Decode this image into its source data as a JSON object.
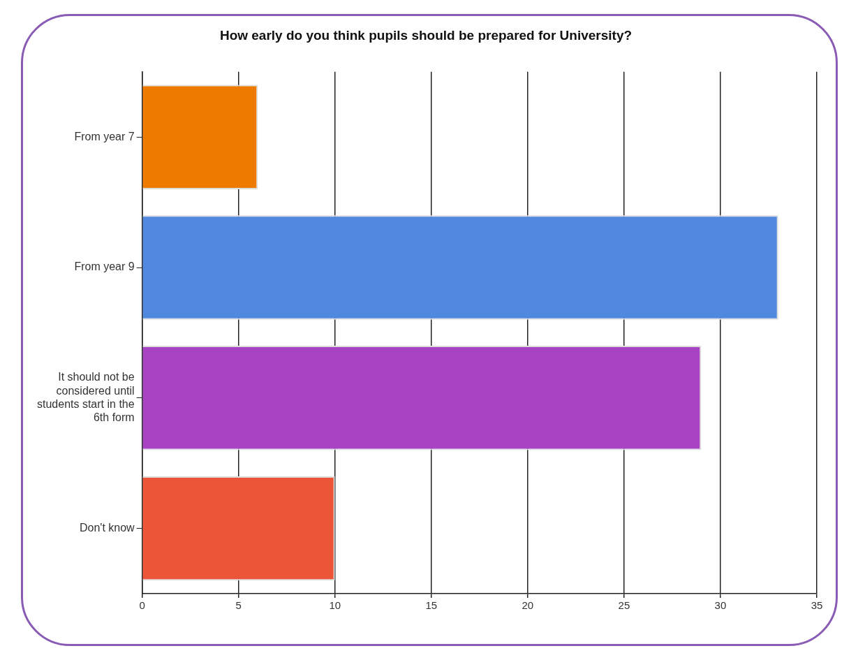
{
  "chart_data": {
    "type": "bar",
    "orientation": "horizontal",
    "title": "How early do you think pupils should be prepared for University?",
    "categories": [
      "From year 7",
      "From year 9",
      "It should not be considered until students start in the 6th form",
      "Don't know"
    ],
    "values": [
      6,
      33,
      29,
      10
    ],
    "colors": [
      "#ee7a00",
      "#5088dd",
      "#a843c3",
      "#ec5537"
    ],
    "xlim": [
      0,
      35
    ],
    "xticks": [
      0,
      5,
      10,
      15,
      20,
      25,
      30,
      35
    ],
    "grid": "x",
    "legend": false
  }
}
